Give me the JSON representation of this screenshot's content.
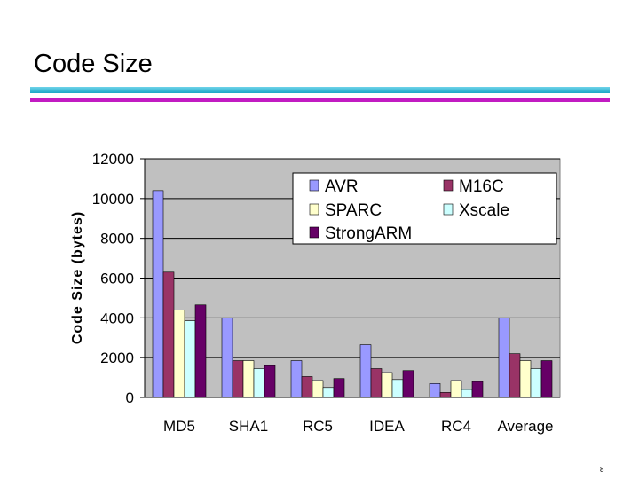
{
  "slide": {
    "title": "Code Size",
    "page_number": "8",
    "colors": {
      "rule_top": "#1aa7c7",
      "rule_bottom": "#c21bc2"
    }
  },
  "chart_data": {
    "type": "bar",
    "title": "",
    "xlabel": "",
    "ylabel": "Code Size (bytes)",
    "ylim": [
      0,
      12000
    ],
    "yticks": [
      0,
      2000,
      4000,
      6000,
      8000,
      10000,
      12000
    ],
    "grid": true,
    "legend_position": "top-right",
    "plot_background": "#c0c0c0",
    "categories": [
      "MD5",
      "SHA1",
      "RC5",
      "IDEA",
      "RC4",
      "Average"
    ],
    "series": [
      {
        "name": "AVR",
        "color": "#9999ff",
        "values": [
          10400,
          4000,
          1850,
          2650,
          700,
          4000
        ]
      },
      {
        "name": "M16C",
        "color": "#993366",
        "values": [
          6300,
          1850,
          1050,
          1450,
          250,
          2200
        ]
      },
      {
        "name": "SPARC",
        "color": "#ffffcc",
        "values": [
          4400,
          1850,
          850,
          1250,
          850,
          1850
        ]
      },
      {
        "name": "Xscale",
        "color": "#ccffff",
        "values": [
          3850,
          1450,
          500,
          900,
          400,
          1450
        ]
      },
      {
        "name": "StrongARM",
        "color": "#660066",
        "values": [
          4650,
          1600,
          950,
          1350,
          800,
          1850
        ]
      }
    ]
  }
}
